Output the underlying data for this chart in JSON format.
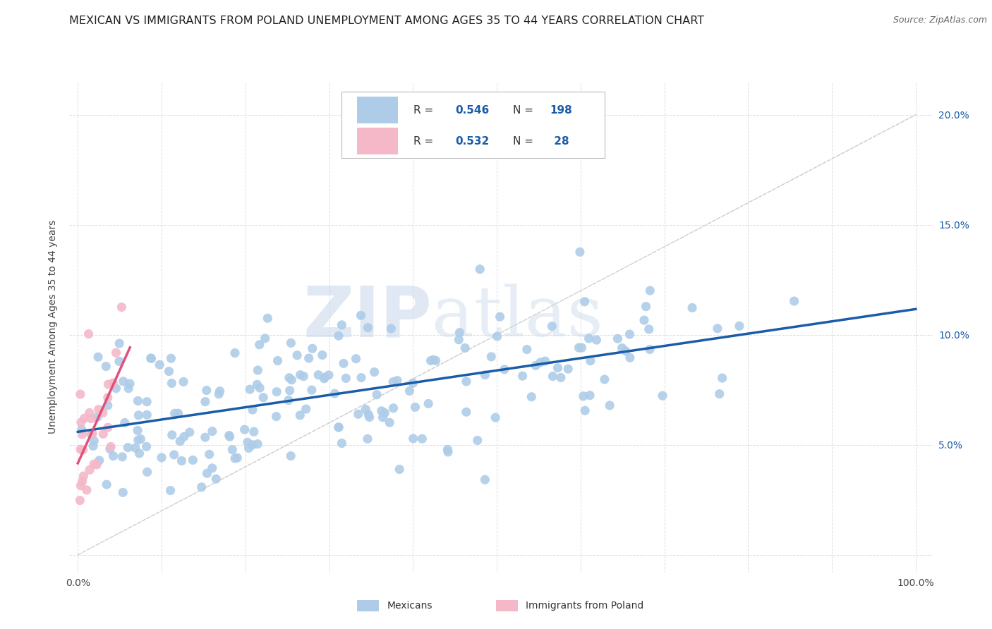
{
  "title": "MEXICAN VS IMMIGRANTS FROM POLAND UNEMPLOYMENT AMONG AGES 35 TO 44 YEARS CORRELATION CHART",
  "source": "Source: ZipAtlas.com",
  "ylabel": "Unemployment Among Ages 35 to 44 years",
  "mexicans_color": "#aecce8",
  "poland_color": "#f4b8c8",
  "mexicans_line_color": "#1a5ca8",
  "poland_line_color": "#e0507a",
  "diagonal_color": "#cccccc",
  "R_mexican": 0.546,
  "N_mexican": 198,
  "R_poland": 0.532,
  "N_poland": 28,
  "legend_label_mexican": "Mexicans",
  "legend_label_poland": "Immigrants from Poland",
  "watermark_zip": "ZIP",
  "watermark_atlas": "atlas",
  "background_color": "#ffffff",
  "title_fontsize": 11.5,
  "source_fontsize": 9,
  "axis_label_fontsize": 10,
  "tick_fontsize": 10,
  "legend_fontsize": 11,
  "watermark_fontsize_zip": 68,
  "watermark_fontsize_atlas": 68,
  "tick_color": "#1a5ca8",
  "grid_color": "#dddddd",
  "y_tick_values": [
    0.0,
    0.05,
    0.1,
    0.15,
    0.2
  ],
  "y_tick_labels": [
    "",
    "5.0%",
    "10.0%",
    "15.0%",
    "20.0%"
  ],
  "x_tick_values": [
    0.0,
    0.1,
    0.2,
    0.3,
    0.4,
    0.5,
    0.6,
    0.7,
    0.8,
    0.9,
    1.0
  ],
  "x_tick_labels": [
    "0.0%",
    "",
    "",
    "",
    "",
    "",
    "",
    "",
    "",
    "",
    "100.0%"
  ]
}
